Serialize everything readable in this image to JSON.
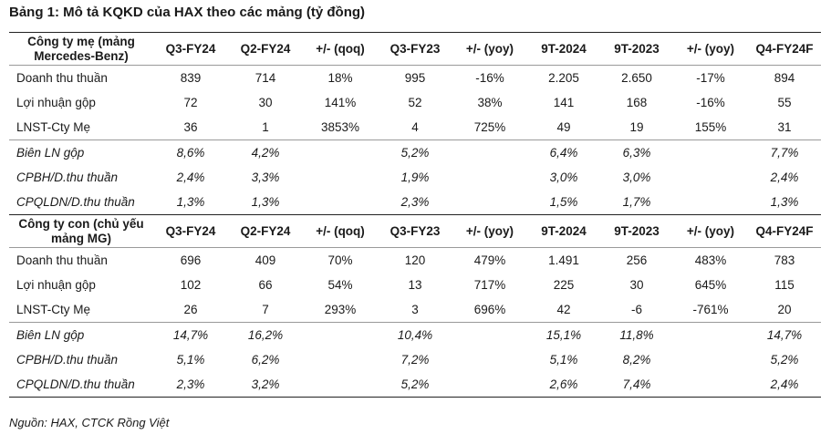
{
  "title": "Bảng 1: Mô tả KQKD của HAX theo các mảng (tỷ đồng)",
  "source": "Nguồn: HAX, CTCK Rồng Việt",
  "columns": [
    "Q3-FY24",
    "Q2-FY24",
    "+/- (qoq)",
    "Q3-FY23",
    "+/- (yoy)",
    "9T-2024",
    "9T-2023",
    "+/- (yoy)",
    "Q4-FY24F"
  ],
  "sections": [
    {
      "header_label": "Công ty mẹ (mảng Mercedes-Benz)",
      "rows": [
        {
          "label": "Doanh thu thuần",
          "values": [
            "839",
            "714",
            "18%",
            "995",
            "-16%",
            "2.205",
            "2.650",
            "-17%",
            "894"
          ]
        },
        {
          "label": "Lợi nhuận gộp",
          "values": [
            "72",
            "30",
            "141%",
            "52",
            "38%",
            "141",
            "168",
            "-16%",
            "55"
          ]
        },
        {
          "label": "LNST-Cty Mẹ",
          "values": [
            "36",
            "1",
            "3853%",
            "4",
            "725%",
            "49",
            "19",
            "155%",
            "31"
          ]
        }
      ],
      "ratios": [
        {
          "label": "Biên LN gộp",
          "values": [
            "8,6%",
            "4,2%",
            "",
            "5,2%",
            "",
            "6,4%",
            "6,3%",
            "",
            "7,7%"
          ]
        },
        {
          "label": "CPBH/D.thu thuần",
          "values": [
            "2,4%",
            "3,3%",
            "",
            "1,9%",
            "",
            "3,0%",
            "3,0%",
            "",
            "2,4%"
          ]
        },
        {
          "label": "CPQLDN/D.thu thuần",
          "values": [
            "1,3%",
            "1,3%",
            "",
            "2,3%",
            "",
            "1,5%",
            "1,7%",
            "",
            "1,3%"
          ]
        }
      ]
    },
    {
      "header_label": "Công ty con (chủ yếu mảng MG)",
      "rows": [
        {
          "label": "Doanh thu thuần",
          "values": [
            "696",
            "409",
            "70%",
            "120",
            "479%",
            "1.491",
            "256",
            "483%",
            "783"
          ]
        },
        {
          "label": "Lợi nhuận gộp",
          "values": [
            "102",
            "66",
            "54%",
            "13",
            "717%",
            "225",
            "30",
            "645%",
            "115"
          ]
        },
        {
          "label": "LNST-Cty Mẹ",
          "values": [
            "26",
            "7",
            "293%",
            "3",
            "696%",
            "42",
            "-6",
            "-761%",
            "20"
          ]
        }
      ],
      "ratios": [
        {
          "label": "Biên LN gộp",
          "values": [
            "14,7%",
            "16,2%",
            "",
            "10,4%",
            "",
            "15,1%",
            "11,8%",
            "",
            "14,7%"
          ]
        },
        {
          "label": "CPBH/D.thu thuần",
          "values": [
            "5,1%",
            "6,2%",
            "",
            "7,2%",
            "",
            "5,1%",
            "8,2%",
            "",
            "5,2%"
          ]
        },
        {
          "label": "CPQLDN/D.thu thuần",
          "values": [
            "2,3%",
            "3,2%",
            "",
            "5,2%",
            "",
            "2,6%",
            "7,4%",
            "",
            "2,4%"
          ]
        }
      ]
    }
  ]
}
